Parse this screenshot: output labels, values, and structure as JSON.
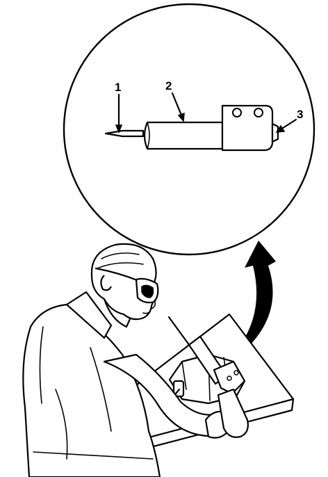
{
  "callouts": [
    {
      "id": "1",
      "label": "1"
    },
    {
      "id": "2",
      "label": "2"
    },
    {
      "id": "3",
      "label": "3"
    }
  ]
}
